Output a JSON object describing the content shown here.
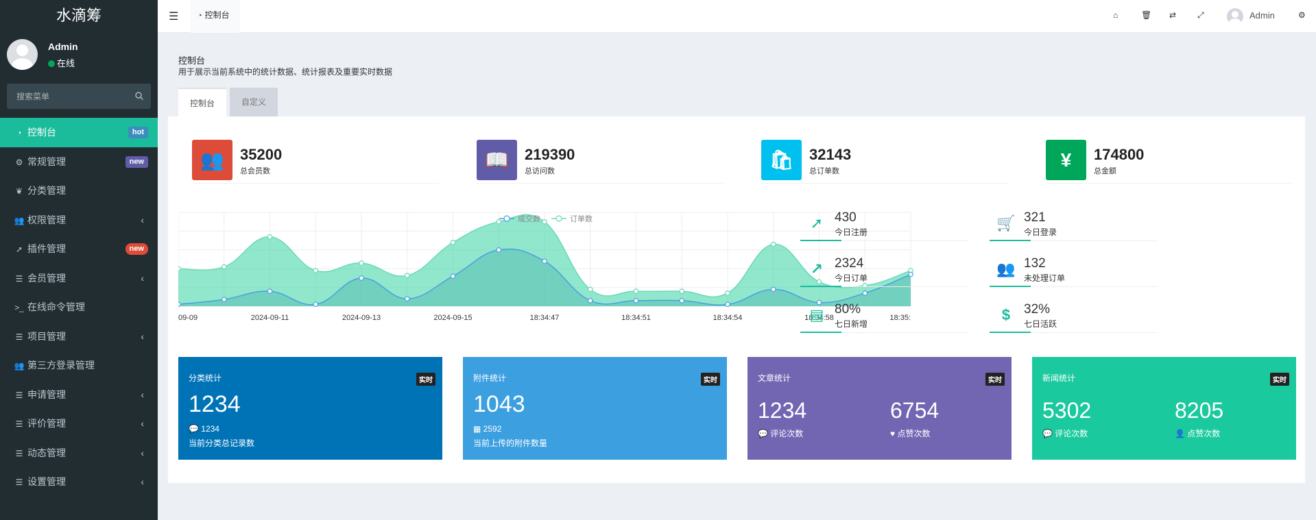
{
  "sidebar": {
    "logo": "水滴筹",
    "user": {
      "name": "Admin",
      "status": "在线"
    },
    "search": {
      "placeholder": "搜索菜单"
    },
    "items": [
      {
        "icon": "dashboard-icon",
        "label": "控制台",
        "badge": "hot"
      },
      {
        "icon": "cogs-icon",
        "label": "常规管理",
        "badge": "new"
      },
      {
        "icon": "leaf-icon",
        "label": "分类管理"
      },
      {
        "icon": "users-icon",
        "label": "权限管理"
      },
      {
        "icon": "rocket-icon",
        "label": "插件管理",
        "badge": "new"
      },
      {
        "icon": "list-icon",
        "label": "会员管理"
      },
      {
        "icon": "terminal-icon",
        "label": "在线命令管理"
      },
      {
        "icon": "list-icon",
        "label": "项目管理"
      },
      {
        "icon": "users-icon",
        "label": "第三方登录管理"
      },
      {
        "icon": "list-icon",
        "label": "申请管理"
      },
      {
        "icon": "list-icon",
        "label": "评价管理"
      },
      {
        "icon": "list-icon",
        "label": "动态管理"
      },
      {
        "icon": "list-icon",
        "label": "设置管理"
      }
    ]
  },
  "header": {
    "tab_label": "控制台",
    "admin_label": "Admin"
  },
  "page": {
    "title": "控制台",
    "description": "用于展示当前系统中的统计数据、统计报表及重要实时数据",
    "tabs": [
      "控制台",
      "自定义"
    ]
  },
  "info_boxes": [
    {
      "value": "35200",
      "label": "总会员数",
      "color": "#dd4b39",
      "icon": "users-icon"
    },
    {
      "value": "219390",
      "label": "总访问数",
      "color": "#605ca8",
      "icon": "book-icon"
    },
    {
      "value": "32143",
      "label": "总订单数",
      "color": "#00c0ef",
      "icon": "shopping-bag-icon"
    },
    {
      "value": "174800",
      "label": "总金额",
      "color": "#00a65a",
      "icon": "yen-icon"
    }
  ],
  "mini_stats": [
    {
      "value": "430",
      "label": "今日注册",
      "icon": "rocket-icon"
    },
    {
      "value": "321",
      "label": "今日登录",
      "icon": "cart-icon"
    },
    {
      "value": "2324",
      "label": "今日订单",
      "icon": "line-chart-icon"
    },
    {
      "value": "132",
      "label": "未处理订单",
      "icon": "users-icon"
    },
    {
      "value": "80%",
      "label": "七日新增",
      "icon": "list-alt-icon"
    },
    {
      "value": "32%",
      "label": "七日活跃",
      "icon": "dollar-icon"
    }
  ],
  "cards": [
    {
      "title": "分类统计",
      "tag": "实时",
      "big": "1234",
      "sub_value": "1234",
      "sub_label": "当前分类总记录数",
      "color": "#0073b7"
    },
    {
      "title": "附件统计",
      "tag": "实时",
      "big": "1043",
      "sub_value": "2592",
      "sub_label": "当前上传的附件数量",
      "color": "#3c9fe0"
    },
    {
      "title": "文章统计",
      "tag": "实时",
      "left_value": "1234",
      "left_label": "评论次数",
      "right_value": "6754",
      "right_label": "点赞次数",
      "color": "#7266b3"
    },
    {
      "title": "新闻统计",
      "tag": "实时",
      "left_value": "5302",
      "left_label": "评论次数",
      "right_value": "8205",
      "right_label": "点赞次数",
      "color": "#1bc99e"
    }
  ],
  "chart_data": {
    "type": "area",
    "legend": [
      "成交数",
      "订单数"
    ],
    "legend_position": "top-center",
    "x_ticks": [
      "09-09",
      "2024-09-11",
      "2024-09-13",
      "2024-09-15",
      "18:34:47",
      "18:34:51",
      "18:34:54",
      "18:34:58",
      "18:35:"
    ],
    "series": [
      {
        "name": "订单数",
        "color": "#7ee0c0",
        "values": [
          100,
          105,
          185,
          95,
          115,
          82,
          170,
          225,
          225,
          45,
          40,
          40,
          35,
          165,
          65,
          55,
          95
        ]
      },
      {
        "name": "成交数",
        "color": "#5ab0d8",
        "values": [
          5,
          18,
          40,
          5,
          75,
          20,
          80,
          150,
          120,
          15,
          15,
          15,
          5,
          45,
          10,
          35,
          85
        ]
      }
    ],
    "ylim": [
      0,
      250
    ],
    "grid": true
  }
}
